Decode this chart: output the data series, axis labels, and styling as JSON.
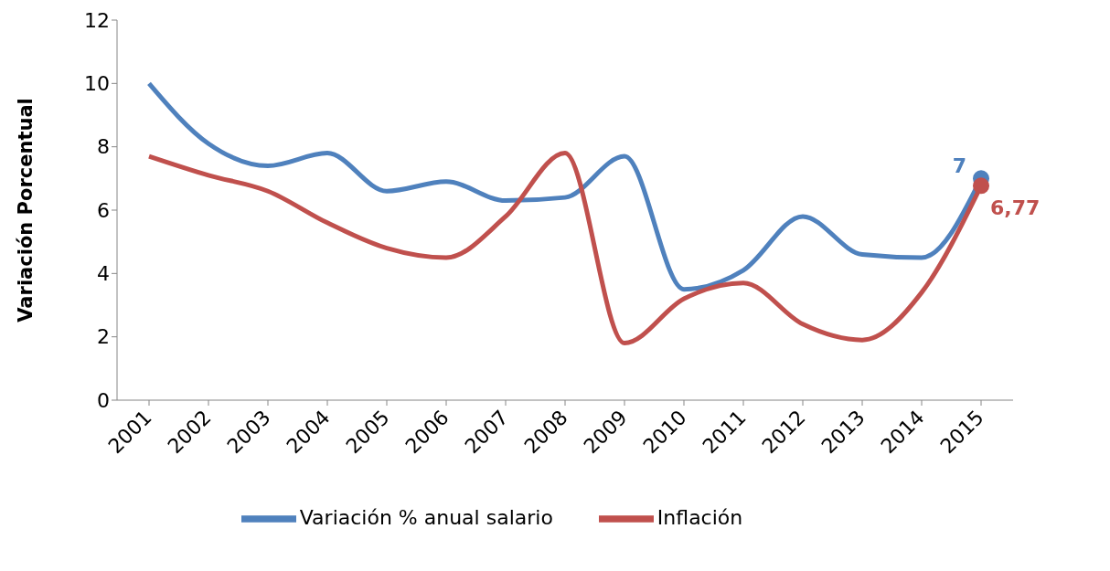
{
  "chart_data": {
    "type": "line",
    "ylabel": "Variación Porcentual",
    "categories": [
      "2001",
      "2002",
      "2003",
      "2004",
      "2005",
      "2006",
      "2007",
      "2008",
      "2009",
      "2010",
      "2011",
      "2012",
      "2013",
      "2014",
      "2015"
    ],
    "series": [
      {
        "name": "Variación % anual salario",
        "color": "#4f81bd",
        "values": [
          10,
          8.1,
          7.4,
          7.8,
          6.6,
          6.9,
          6.3,
          6.4,
          7.7,
          3.5,
          4.1,
          5.8,
          4.6,
          4.5,
          7
        ],
        "value_labels": [
          null,
          null,
          null,
          null,
          null,
          null,
          null,
          null,
          null,
          null,
          null,
          null,
          null,
          null,
          "7"
        ]
      },
      {
        "name": "Inflación",
        "color": "#c0504d",
        "values": [
          7.7,
          7.1,
          6.6,
          5.6,
          4.8,
          4.5,
          5.8,
          7.8,
          1.8,
          3.2,
          3.7,
          2.4,
          1.9,
          3.4,
          6.77
        ],
        "value_labels": [
          null,
          null,
          null,
          null,
          null,
          null,
          null,
          null,
          null,
          null,
          null,
          null,
          null,
          null,
          "6,77"
        ]
      }
    ],
    "ylim": [
      0,
      12
    ],
    "yticks": [
      0,
      2,
      4,
      6,
      8,
      10,
      12
    ],
    "grid": false,
    "legend": "bottom",
    "line_style": "solid"
  }
}
